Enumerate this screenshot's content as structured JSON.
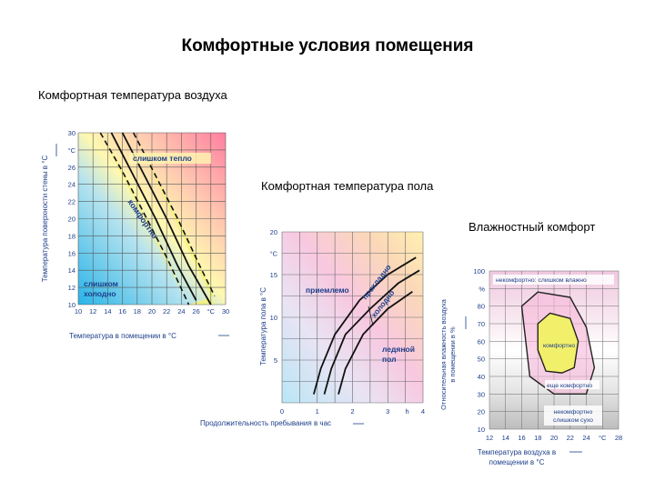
{
  "page": {
    "title": "Комфортные условия помещения",
    "caption_air": "Комфортная температура воздуха",
    "caption_floor": "Комфортная температура пола",
    "caption_humidity": "Влажностный комфорт"
  },
  "chart_data": [
    {
      "type": "line",
      "ylabel": "Температура поверхности стены в °С",
      "xlabel": "Температура в помещении в °С",
      "y_unit": "°С",
      "x_unit": "°С",
      "xlim": [
        10,
        30
      ],
      "ylim": [
        10,
        30
      ],
      "xticks": [
        "10",
        "12",
        "14",
        "16",
        "18",
        "20",
        "22",
        "24",
        "26",
        "°С",
        "30"
      ],
      "yticks": [
        "10",
        "12",
        "14",
        "16",
        "18",
        "20",
        "22",
        "24",
        "26",
        "°С",
        "30"
      ],
      "regions": {
        "hot": "слишком тепло",
        "comfort": "комфортно",
        "cold_line1": "слишком",
        "cold_line2": "холодно"
      },
      "series": [
        {
          "style": "dashed",
          "x": [
            13,
            16,
            19,
            22,
            25
          ],
          "y": [
            30,
            25.5,
            20.5,
            15.5,
            10
          ]
        },
        {
          "style": "solid",
          "x": [
            14.5,
            17.5,
            20.5,
            23.5,
            26
          ],
          "y": [
            30,
            25,
            20,
            14.5,
            10.5
          ]
        },
        {
          "style": "solid",
          "x": [
            16,
            19,
            22,
            25,
            28
          ],
          "y": [
            30,
            25,
            20,
            14.5,
            10
          ]
        },
        {
          "style": "dashed",
          "x": [
            17.5,
            20.5,
            23.5,
            26.5,
            28.5
          ],
          "y": [
            30,
            25,
            20,
            14.5,
            11
          ]
        }
      ]
    },
    {
      "type": "line",
      "ylabel": "Температура пола в °С",
      "xlabel": "Продолжительность пребывания в час",
      "y_unit": "°С",
      "x_unit": "h",
      "xlim": [
        0,
        4
      ],
      "ylim": [
        0,
        20
      ],
      "xticks": [
        "0",
        "1",
        "2",
        "3",
        "h",
        "4"
      ],
      "yticks": [
        "20",
        "°С",
        "15",
        "10",
        "5"
      ],
      "regions": {
        "ok": "приемлемо",
        "cool": "прохладно",
        "cold": "холодно",
        "icy_line1": "ледяной",
        "icy_line2": "пол"
      },
      "series": [
        {
          "x": [
            0.9,
            1.1,
            1.5,
            2.2,
            3.0,
            3.8
          ],
          "y": [
            1,
            4,
            8,
            12,
            15,
            17
          ]
        },
        {
          "x": [
            1.2,
            1.4,
            1.8,
            2.5,
            3.3,
            3.9
          ],
          "y": [
            1,
            4,
            8,
            11,
            14,
            15.5
          ]
        },
        {
          "x": [
            1.6,
            1.8,
            2.3,
            3.0,
            3.7
          ],
          "y": [
            1,
            4,
            8,
            11,
            13
          ]
        }
      ]
    },
    {
      "type": "area",
      "ylabel_line1": "Относительная влажность воздуха",
      "ylabel_line2": "в помещении в %",
      "xlabel_line1": "Температура воздуха в",
      "xlabel_line2": "помещении в °С",
      "xlim": [
        12,
        28
      ],
      "ylim": [
        10,
        100
      ],
      "xticks": [
        "12",
        "14",
        "16",
        "18",
        "20",
        "22",
        "24",
        "°С",
        "28"
      ],
      "yticks": [
        "100",
        "%",
        "80",
        "70",
        "60",
        "50",
        "40",
        "30",
        "20",
        "10"
      ],
      "regions": {
        "too_humid": "некомфортно: слишком влажно",
        "comfort_line1": "комфортно",
        "still_comfort": "еще комфортно",
        "too_dry_line1": "некомфортно",
        "too_dry_line2": "слишком сухо"
      },
      "outer_zone": {
        "x": [
          16,
          18,
          22,
          24,
          25,
          24,
          20,
          17,
          16
        ],
        "y": [
          80,
          88,
          85,
          68,
          45,
          30,
          30,
          40,
          80
        ]
      },
      "inner_zone": {
        "x": [
          18,
          19.5,
          22,
          23,
          22.5,
          21,
          19,
          18,
          18
        ],
        "y": [
          70,
          76,
          73,
          60,
          45,
          42,
          43,
          55,
          70
        ]
      }
    }
  ]
}
